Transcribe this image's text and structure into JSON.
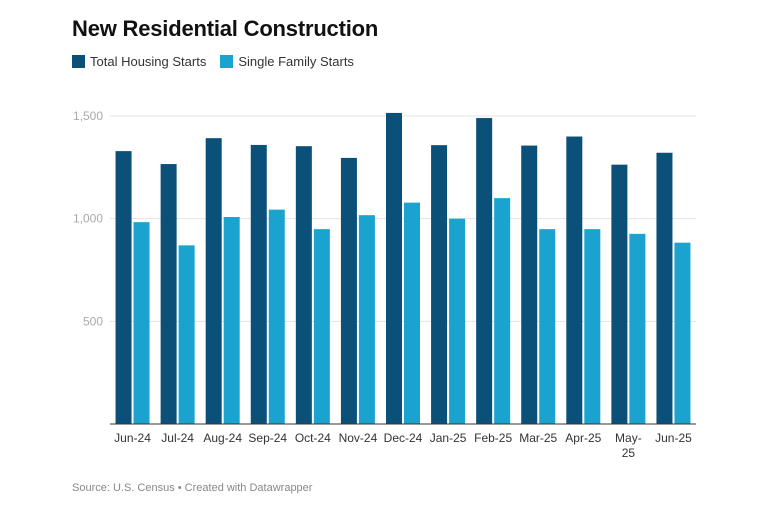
{
  "chart_data": {
    "type": "bar",
    "title": "New Residential Construction",
    "categories": [
      "Jun-24",
      "Jul-24",
      "Aug-24",
      "Sep-24",
      "Oct-24",
      "Nov-24",
      "Dec-24",
      "Jan-25",
      "Feb-25",
      "Mar-25",
      "Apr-25",
      "May-25",
      "Jun-25"
    ],
    "series": [
      {
        "name": "Total Housing Starts",
        "color": "#0b5078",
        "values": [
          1329,
          1266,
          1392,
          1359,
          1353,
          1296,
          1515,
          1358,
          1490,
          1356,
          1400,
          1263,
          1321
        ]
      },
      {
        "name": "Single Family Starts",
        "color": "#1ba3d0",
        "values": [
          983,
          870,
          1008,
          1044,
          949,
          1017,
          1078,
          1000,
          1100,
          949,
          949,
          926,
          883
        ]
      }
    ],
    "yticks": [
      500,
      1000,
      1500
    ],
    "ytick_labels": [
      "500",
      "1,000",
      "1,500"
    ],
    "ylim": [
      0,
      1500
    ],
    "xlabel": "",
    "ylabel": "",
    "grid": true,
    "legend": "top-left",
    "source": "Source: U.S. Census • Created with Datawrapper"
  }
}
